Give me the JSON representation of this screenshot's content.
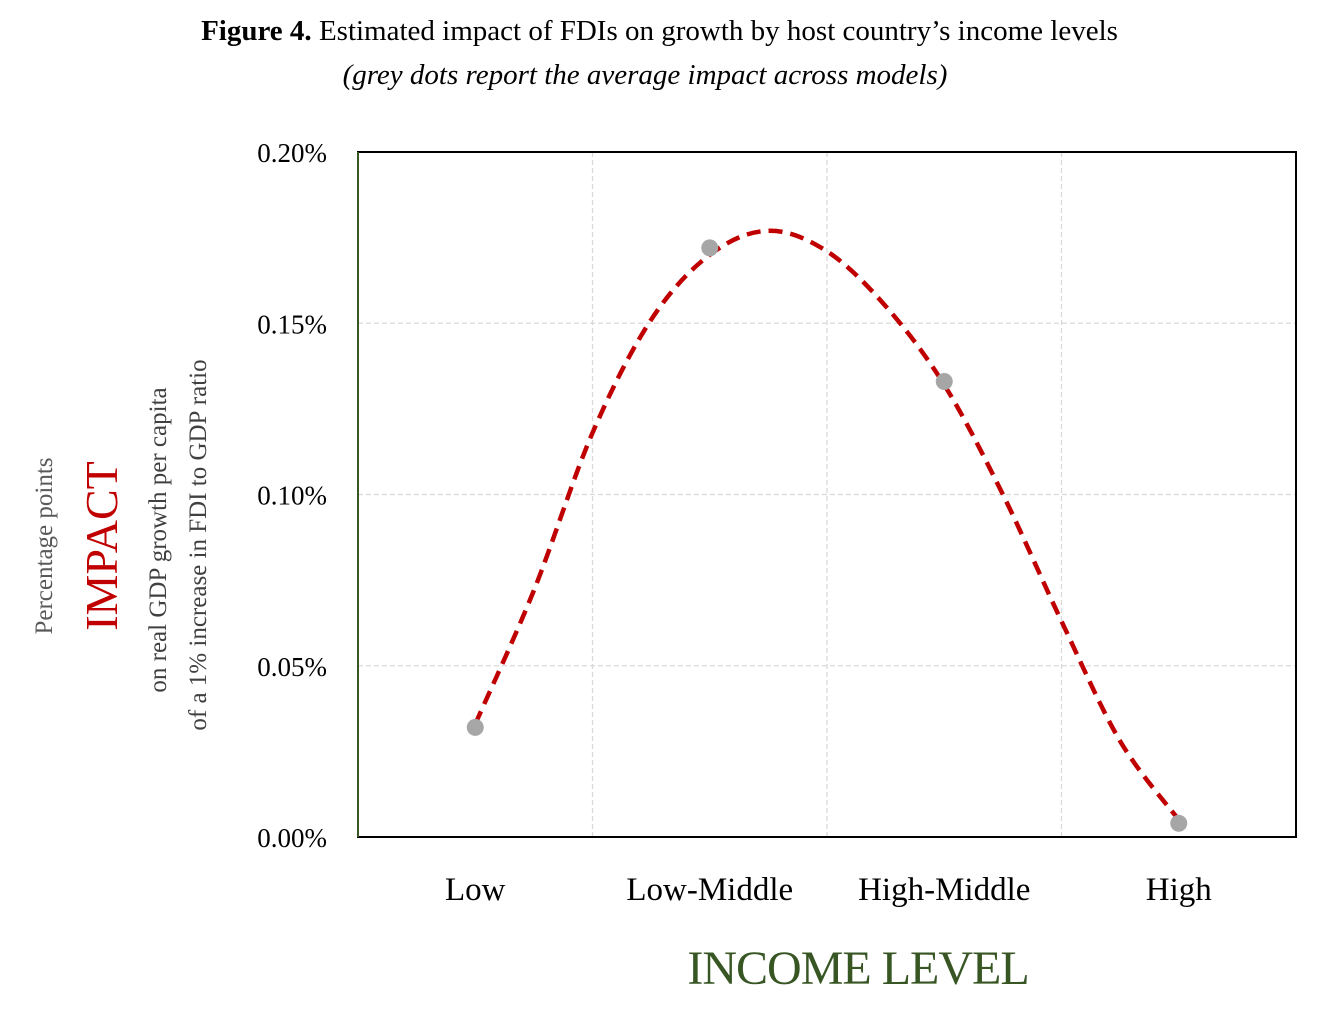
{
  "figure": {
    "label": "Figure 4.",
    "title": "Estimated impact of FDIs on growth by host country’s income levels",
    "subtitle": "(grey dots report the average impact across models)"
  },
  "chart_data": {
    "type": "line",
    "title": "Estimated impact of FDIs on growth by host country’s income levels",
    "subtitle": "(grey dots report the average impact across models)",
    "categories": [
      "Low",
      "Low-Middle",
      "High-Middle",
      "High"
    ],
    "series": [
      {
        "name": "Average impact across models",
        "style": "scatter",
        "color": "#a6a6a6",
        "values": [
          0.032,
          0.172,
          0.133,
          0.004
        ]
      },
      {
        "name": "Fitted trend",
        "style": "dashed-curve",
        "color": "#c00000",
        "x": [
          0.0,
          0.25,
          0.5,
          0.75,
          1.0,
          1.25,
          1.5,
          1.75,
          2.0,
          2.25,
          2.5,
          2.75,
          3.0
        ],
        "values": [
          0.033,
          0.072,
          0.118,
          0.151,
          0.17,
          0.177,
          0.171,
          0.155,
          0.132,
          0.1,
          0.063,
          0.028,
          0.005
        ]
      }
    ],
    "xlabel": "INCOME LEVEL",
    "ylabel": {
      "top": "Percentage  points",
      "main": "IMPACT",
      "line1": "on real GDP growth per capita",
      "line2": "of a 1% increase in FDI to GDP ratio"
    },
    "ylim": [
      0,
      0.2
    ],
    "yticks": [
      "0.00%",
      "0.05%",
      "0.10%",
      "0.15%",
      "0.20%"
    ],
    "ytick_values": [
      0,
      0.05,
      0.1,
      0.15,
      0.2
    ],
    "grid": true,
    "colors": {
      "curve": "#c00000",
      "dots": "#a6a6a6",
      "xlabel": "#375623",
      "ylabel_main": "#c00000",
      "left_axis": "#375623"
    }
  }
}
